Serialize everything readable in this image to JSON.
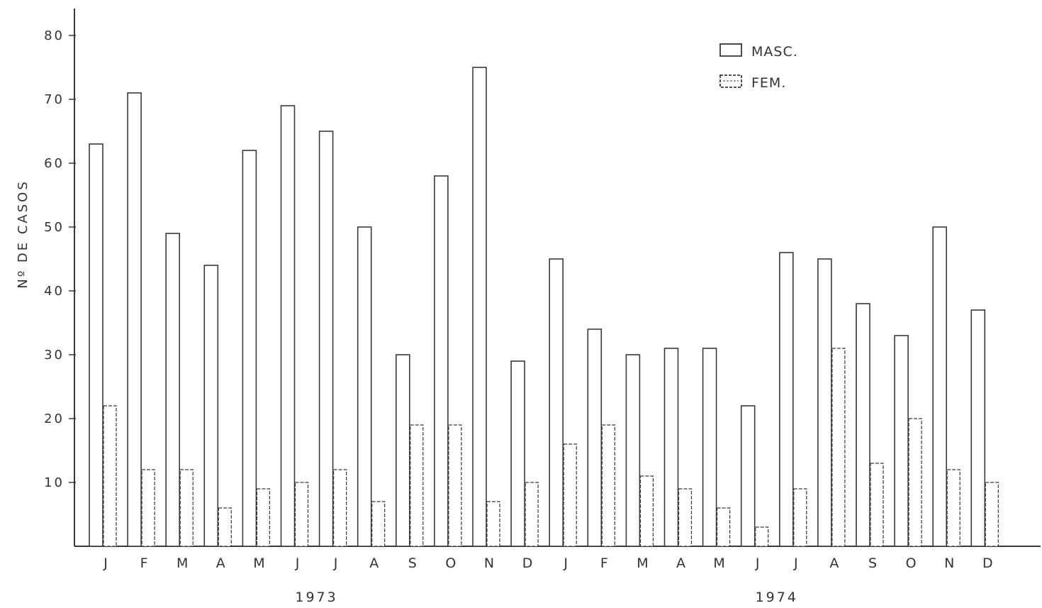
{
  "chart_data": {
    "type": "bar",
    "ylabel": "Nº DE CASOS",
    "ylim": [
      0,
      80
    ],
    "yticks": [
      "10",
      "20",
      "30",
      "40",
      "50",
      "60",
      "70",
      "80"
    ],
    "grid": false,
    "legend_position": "top-right",
    "categories": [
      "J",
      "F",
      "M",
      "A",
      "M",
      "J",
      "J",
      "A",
      "S",
      "O",
      "N",
      "D",
      "J",
      "F",
      "M",
      "A",
      "M",
      "J",
      "J",
      "A",
      "S",
      "O",
      "N",
      "D"
    ],
    "groups": [
      {
        "label": "1973",
        "categories": [
          "J",
          "F",
          "M",
          "A",
          "M",
          "J",
          "J",
          "A",
          "S",
          "O",
          "N",
          "D"
        ]
      },
      {
        "label": "1974",
        "categories": [
          "J",
          "F",
          "M",
          "A",
          "M",
          "J",
          "J",
          "A",
          "S",
          "O",
          "N",
          "D"
        ]
      }
    ],
    "series": [
      {
        "name": "MASC.",
        "values": [
          63,
          71,
          49,
          44,
          62,
          69,
          65,
          50,
          30,
          58,
          75,
          29,
          45,
          34,
          30,
          31,
          31,
          22,
          46,
          45,
          38,
          33,
          50,
          37
        ]
      },
      {
        "name": "FEM.",
        "values": [
          22,
          12,
          12,
          6,
          9,
          10,
          12,
          7,
          19,
          19,
          7,
          10,
          16,
          19,
          11,
          9,
          6,
          3,
          9,
          31,
          13,
          20,
          12,
          10
        ]
      }
    ],
    "colors": {
      "masc": "#ffffff",
      "fem": "#ffffff",
      "stroke": "#3a3a3a"
    }
  }
}
